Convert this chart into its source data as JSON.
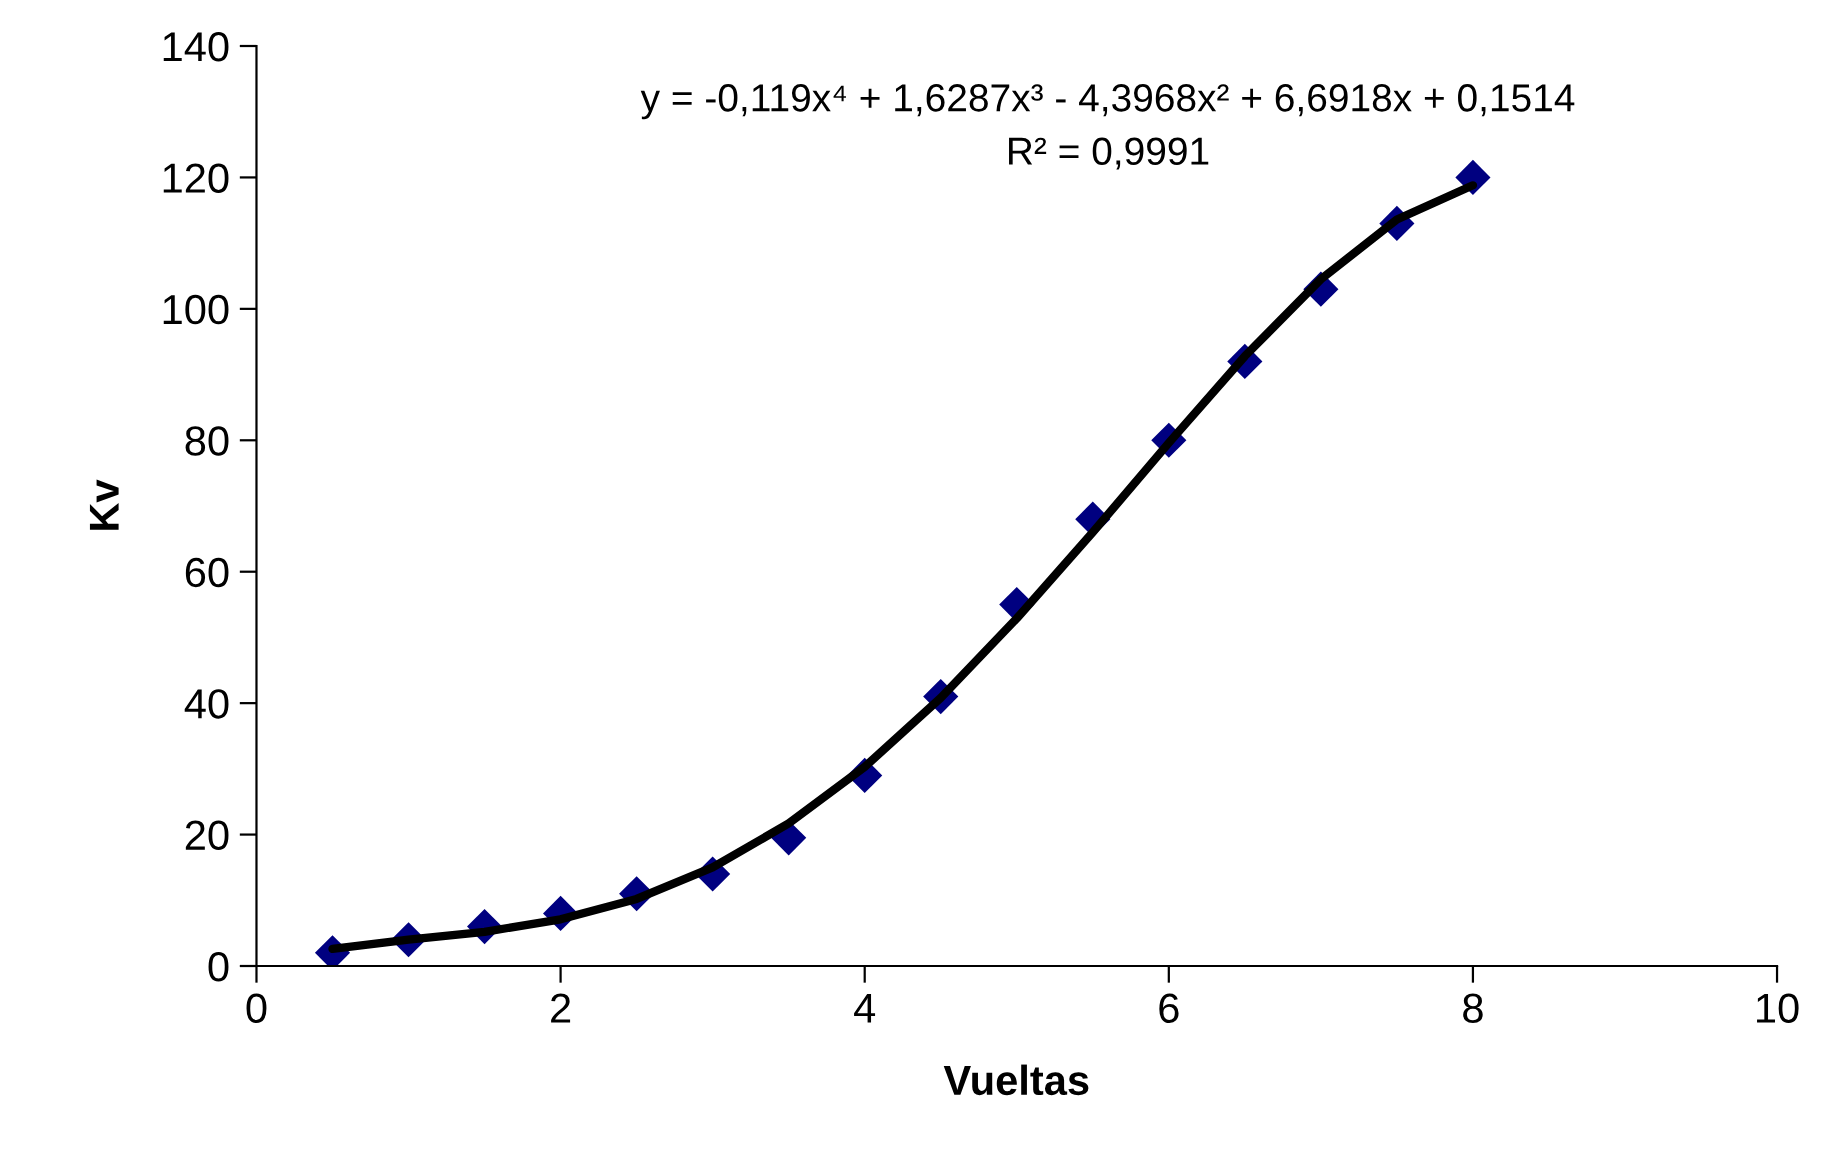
{
  "chart_data": {
    "type": "scatter",
    "xlabel": "Vueltas",
    "ylabel": "Kv",
    "xlim": [
      0,
      10
    ],
    "xticks": [
      0,
      2,
      4,
      6,
      8,
      10
    ],
    "ylim": [
      0,
      140
    ],
    "yticks": [
      0,
      20,
      40,
      60,
      80,
      100,
      120,
      140
    ],
    "grid": false,
    "legend": false,
    "series": [
      {
        "color": "#000080",
        "marker": "diamond",
        "x": [
          0.5,
          1,
          1.5,
          2,
          2.5,
          3,
          3.5,
          4,
          4.5,
          5,
          5.5,
          6,
          6.5,
          7,
          7.5,
          8
        ],
        "values": [
          2,
          4,
          6,
          8,
          11,
          14,
          19.5,
          29,
          41,
          55,
          68,
          80,
          92,
          103,
          113,
          120
        ]
      },
      {
        "type": "line",
        "color": "#000000",
        "marker": "none",
        "line_style": "solid",
        "x": [
          0.5,
          1,
          1.5,
          2,
          2.5,
          3,
          3.5,
          4,
          4.5,
          5,
          5.5,
          6,
          6.5,
          7,
          7.5,
          8
        ],
        "values": [
          2.6,
          4.0,
          5.2,
          7.1,
          10.2,
          15.0,
          21.7,
          30.3,
          40.8,
          52.9,
          66.0,
          79.6,
          92.8,
          104.5,
          113.6,
          118.8
        ]
      }
    ],
    "annotations": [
      "y = -0,119x⁴ + 1,6287x³ - 4,3968x² + 6,6918x + 0,1514",
      "R² = 0,9991"
    ]
  }
}
